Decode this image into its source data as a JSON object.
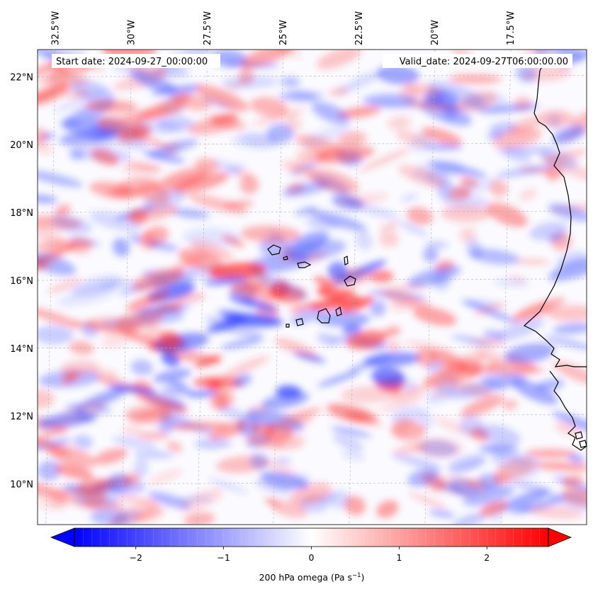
{
  "map": {
    "start_date": "Start date: 2024-09-27_00:00:00",
    "valid_date": "Valid_date: 2024-09-27T06:00:00.00",
    "extent": {
      "lon": [
        -33.1,
        -15.0
      ],
      "lat": [
        8.8,
        22.8
      ]
    },
    "lon_ticks": [
      {
        "value": -32.5,
        "label": "32.5°W"
      },
      {
        "value": -30.0,
        "label": "30°W"
      },
      {
        "value": -27.5,
        "label": "27.5°W"
      },
      {
        "value": -25.0,
        "label": "25°W"
      },
      {
        "value": -22.5,
        "label": "22.5°W"
      },
      {
        "value": -20.0,
        "label": "20°W"
      },
      {
        "value": -17.5,
        "label": "17.5°W"
      }
    ],
    "lat_ticks": [
      {
        "value": 10,
        "label": "10°N"
      },
      {
        "value": 12,
        "label": "12°N"
      },
      {
        "value": 14,
        "label": "14°N"
      },
      {
        "value": 16,
        "label": "16°N"
      },
      {
        "value": 18,
        "label": "18°N"
      },
      {
        "value": 20,
        "label": "20°N"
      },
      {
        "value": 22,
        "label": "22°N"
      }
    ],
    "gridlines": true,
    "colormap": "bwr",
    "colors": {
      "negative": "#0000ff",
      "neutral": "#ffffff",
      "positive": "#ff0000",
      "coast": "#000000",
      "grid": "#b0b0b0"
    }
  },
  "colorbar": {
    "label": "200 hPa omega (Pa s",
    "label_sup": "−1",
    "label_end": ")",
    "range": [
      -2.7,
      2.7
    ],
    "extend": "both",
    "ticks": [
      {
        "value": -2,
        "label": "−2"
      },
      {
        "value": -1,
        "label": "−1"
      },
      {
        "value": 0,
        "label": "0"
      },
      {
        "value": 1,
        "label": "1"
      },
      {
        "value": 2,
        "label": "2"
      }
    ]
  }
}
